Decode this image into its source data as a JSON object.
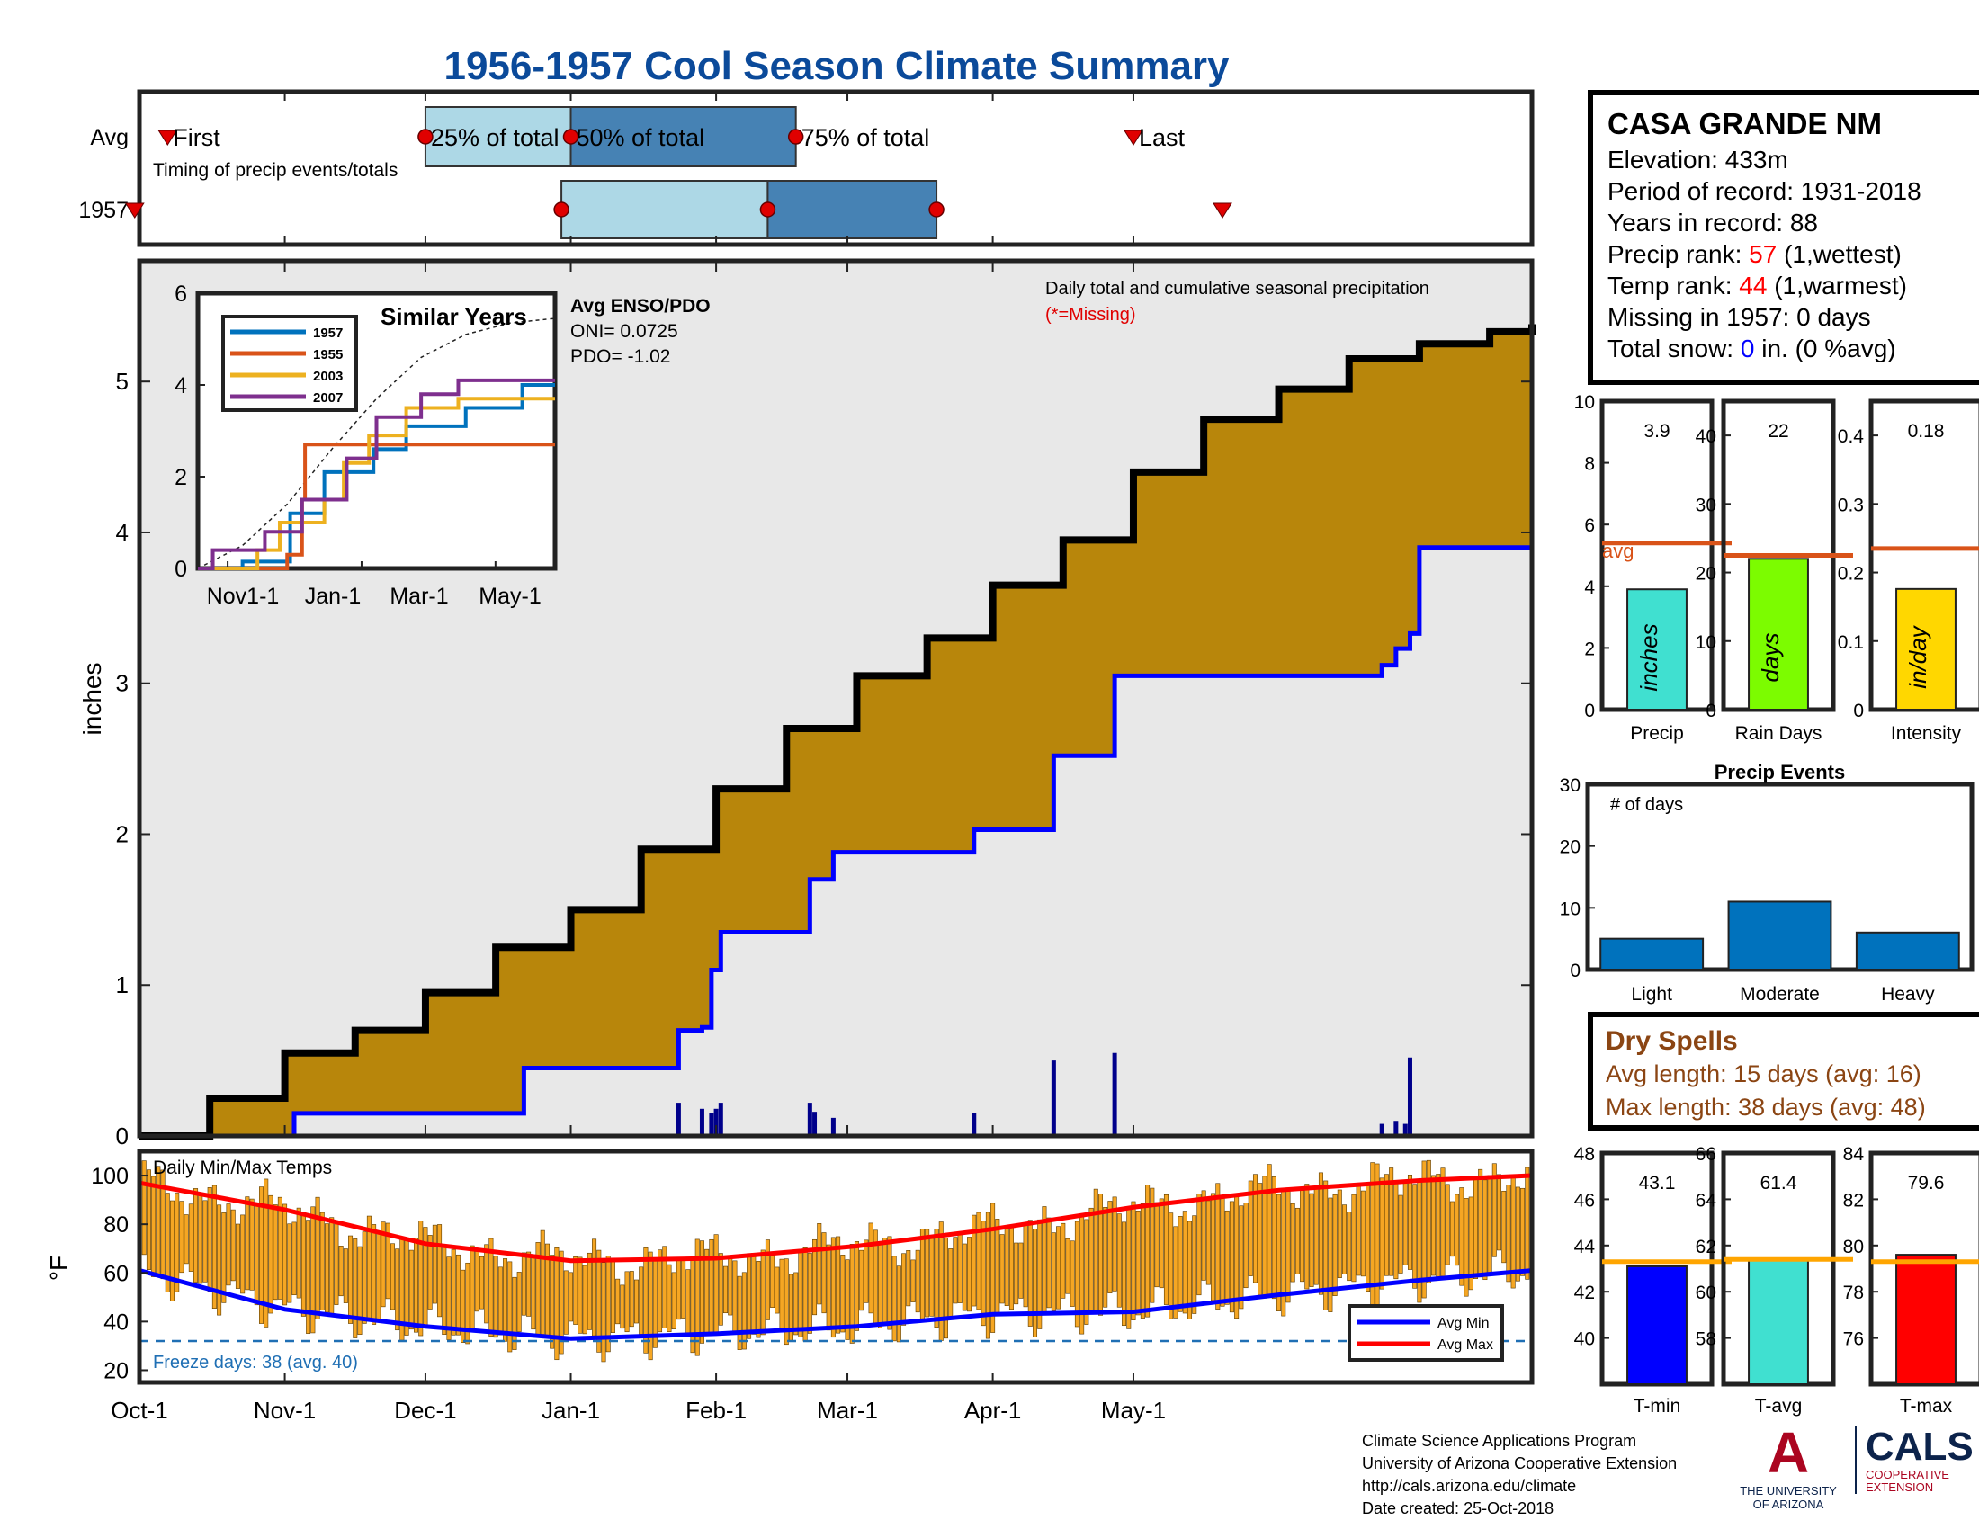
{
  "title": "1956-1957 Cool Season Climate Summary",
  "station": {
    "name": "CASA GRANDE NM",
    "elevation": "Elevation: 433m",
    "period": "Period of record: 1931-2018",
    "years": "Years in record: 88",
    "precip_rank_label": "Precip rank: ",
    "precip_rank": "57",
    "precip_rank_note": " (1,wettest)",
    "temp_rank_label": "Temp rank: ",
    "temp_rank": "44",
    "temp_rank_note": " (1,warmest)",
    "missing": "Missing in 1957: 0 days",
    "snow_label": "Total snow: ",
    "snow_value": "0",
    "snow_note": " in. (0 %avg)"
  },
  "dry_spells": {
    "title": "Dry Spells",
    "avg": "Avg length: 15 days (avg: 16)",
    "max": "Max length: 38 days (avg: 48)"
  },
  "credits": {
    "line1": "Climate Science Applications Program",
    "line2": "University of Arizona Cooperative Extension",
    "line3": "http://cals.arizona.edu/climate",
    "line4": " Date created: 25-Oct-2018"
  },
  "logos": {
    "ua_mark": "A",
    "ua_text": "THE UNIVERSITY OF ARIZONA",
    "cals": "CALS",
    "cals_sub": "COOPERATIVE EXTENSION"
  },
  "colors": {
    "title": "#0B4A9A",
    "brown": "#B8860B",
    "blue": "#0000FF",
    "red": "#FF0000",
    "avg_line": "#D95319",
    "light_box": "#ADD8E6",
    "dark_box": "#4682B4"
  },
  "chart_data": [
    {
      "id": "timing",
      "type": "timeline",
      "row_labels": [
        "Avg",
        "1957"
      ],
      "note": "Timing of precip events/totals",
      "avg_markers": {
        "first": "Oct-7",
        "p25": "Dec-1",
        "p50": "Jan-1",
        "p75": "Feb-18",
        "last": "May-1"
      },
      "marker_labels": [
        "First",
        "25% of total",
        "50% of total",
        "75% of total",
        "Last"
      ],
      "year_markers": {
        "first": "Sep-30",
        "p25": "Dec-30",
        "p50": "Feb-12",
        "p75": "Mar-20",
        "last": "May-20"
      }
    },
    {
      "id": "precip",
      "type": "area",
      "ylabel": "inches",
      "ylim": [
        0,
        5.8
      ],
      "yticks": [
        0,
        1,
        2,
        3,
        4,
        5
      ],
      "xticks": [
        "Oct-1",
        "Nov-1",
        "Dec-1",
        "Jan-1",
        "Feb-1",
        "Mar-1",
        "Apr-1",
        "May-1"
      ],
      "annotation": "Daily total and cumulative seasonal precipitation",
      "annotation_missing": "(*=Missing)",
      "avg_cumulative": [
        [
          0,
          0
        ],
        [
          15,
          0.25
        ],
        [
          31,
          0.55
        ],
        [
          46,
          0.7
        ],
        [
          61,
          0.95
        ],
        [
          76,
          1.25
        ],
        [
          92,
          1.5
        ],
        [
          107,
          1.9
        ],
        [
          123,
          2.3
        ],
        [
          138,
          2.7
        ],
        [
          153,
          3.05
        ],
        [
          168,
          3.3
        ],
        [
          182,
          3.65
        ],
        [
          197,
          3.95
        ],
        [
          212,
          4.4
        ],
        [
          227,
          4.75
        ],
        [
          243,
          4.95
        ],
        [
          258,
          5.15
        ],
        [
          273,
          5.25
        ],
        [
          288,
          5.33
        ],
        [
          297,
          5.38
        ]
      ],
      "year_cumulative": [
        [
          0,
          0
        ],
        [
          33,
          0
        ],
        [
          33,
          0.15
        ],
        [
          82,
          0.15
        ],
        [
          82,
          0.45
        ],
        [
          115,
          0.45
        ],
        [
          115,
          0.7
        ],
        [
          120,
          0.72
        ],
        [
          122,
          1.1
        ],
        [
          124,
          1.35
        ],
        [
          143,
          1.35
        ],
        [
          143,
          1.7
        ],
        [
          148,
          1.7
        ],
        [
          148,
          1.88
        ],
        [
          178,
          1.88
        ],
        [
          178,
          2.03
        ],
        [
          195,
          2.03
        ],
        [
          195,
          2.52
        ],
        [
          208,
          2.52
        ],
        [
          208,
          3.05
        ],
        [
          248,
          3.05
        ],
        [
          265,
          3.08
        ],
        [
          265,
          3.12
        ],
        [
          268,
          3.12
        ],
        [
          268,
          3.23
        ],
        [
          271,
          3.23
        ],
        [
          271,
          3.33
        ],
        [
          273,
          3.33
        ],
        [
          273,
          3.9
        ],
        [
          297,
          3.91
        ]
      ],
      "daily_bars": [
        [
          115,
          0.22
        ],
        [
          120,
          0.18
        ],
        [
          122,
          0.15
        ],
        [
          123,
          0.18
        ],
        [
          124,
          0.22
        ],
        [
          143,
          0.22
        ],
        [
          144,
          0.16
        ],
        [
          148,
          0.12
        ],
        [
          178,
          0.15
        ],
        [
          195,
          0.5
        ],
        [
          208,
          0.55
        ],
        [
          265,
          0.08
        ],
        [
          268,
          0.1
        ],
        [
          270,
          0.08
        ],
        [
          271,
          0.52
        ]
      ]
    },
    {
      "id": "similar_years",
      "type": "line",
      "title": "Similar Years",
      "ylim": [
        0,
        6
      ],
      "yticks": [
        0,
        2,
        4,
        6
      ],
      "xticks": [
        "Nov1-1",
        "Jan-1",
        "Mar-1",
        "May-1"
      ],
      "series": [
        {
          "name": "1957",
          "color": "#0072BD",
          "values": [
            [
              0,
              0
            ],
            [
              30,
              0
            ],
            [
              30,
              0.15
            ],
            [
              62,
              0.15
            ],
            [
              62,
              1.2
            ],
            [
              85,
              1.2
            ],
            [
              85,
              2.1
            ],
            [
              118,
              2.1
            ],
            [
              118,
              2.6
            ],
            [
              140,
              2.6
            ],
            [
              140,
              3.1
            ],
            [
              180,
              3.1
            ],
            [
              180,
              3.5
            ],
            [
              218,
              3.5
            ],
            [
              218,
              4.0
            ],
            [
              240,
              4.0
            ]
          ]
        },
        {
          "name": "1955",
          "color": "#D95319",
          "values": [
            [
              0,
              0
            ],
            [
              60,
              0
            ],
            [
              60,
              0.3
            ],
            [
              70,
              0.3
            ],
            [
              70,
              1.5
            ],
            [
              72,
              1.5
            ],
            [
              72,
              2.7
            ],
            [
              240,
              2.7
            ]
          ]
        },
        {
          "name": "2003",
          "color": "#EDB120",
          "values": [
            [
              0,
              0
            ],
            [
              40,
              0
            ],
            [
              40,
              0.4
            ],
            [
              55,
              0.4
            ],
            [
              55,
              1.0
            ],
            [
              85,
              1.0
            ],
            [
              85,
              1.5
            ],
            [
              98,
              1.5
            ],
            [
              98,
              2.3
            ],
            [
              115,
              2.3
            ],
            [
              115,
              2.9
            ],
            [
              140,
              2.9
            ],
            [
              140,
              3.5
            ],
            [
              175,
              3.5
            ],
            [
              175,
              3.7
            ],
            [
              240,
              3.7
            ]
          ]
        },
        {
          "name": "2007",
          "color": "#7E2F8E",
          "values": [
            [
              0,
              0
            ],
            [
              10,
              0
            ],
            [
              10,
              0.4
            ],
            [
              45,
              0.4
            ],
            [
              45,
              0.8
            ],
            [
              70,
              0.8
            ],
            [
              70,
              1.5
            ],
            [
              100,
              1.5
            ],
            [
              100,
              2.4
            ],
            [
              120,
              2.4
            ],
            [
              120,
              3.3
            ],
            [
              150,
              3.3
            ],
            [
              150,
              3.8
            ],
            [
              175,
              3.8
            ],
            [
              175,
              4.1
            ],
            [
              240,
              4.1
            ]
          ]
        }
      ],
      "avg_line": [
        [
          0,
          0
        ],
        [
          30,
          0.5
        ],
        [
          60,
          1.4
        ],
        [
          90,
          2.6
        ],
        [
          120,
          3.7
        ],
        [
          150,
          4.6
        ],
        [
          180,
          5.1
        ],
        [
          210,
          5.35
        ],
        [
          240,
          5.45
        ]
      ],
      "enso_title": "Avg ENSO/PDO",
      "oni": "ONI= 0.0725",
      "pdo": "PDO= -1.02"
    },
    {
      "id": "temps",
      "type": "bar",
      "title": "Daily Min/Max Temps",
      "ylabel": "°F",
      "ylim": [
        15,
        110
      ],
      "yticks": [
        20,
        40,
        60,
        80,
        100
      ],
      "freeze_line": 32,
      "freeze_text": "Freeze days: 38 (avg. 40)",
      "legend": [
        "Avg Min",
        "Avg Max"
      ],
      "avg_max": [
        [
          0,
          97
        ],
        [
          31,
          86
        ],
        [
          61,
          72
        ],
        [
          92,
          65
        ],
        [
          123,
          66
        ],
        [
          153,
          71
        ],
        [
          182,
          78
        ],
        [
          212,
          87
        ],
        [
          243,
          94
        ],
        [
          273,
          98
        ],
        [
          297,
          100
        ]
      ],
      "avg_min": [
        [
          0,
          61
        ],
        [
          31,
          45
        ],
        [
          61,
          38
        ],
        [
          92,
          33
        ],
        [
          123,
          35
        ],
        [
          153,
          38
        ],
        [
          182,
          43
        ],
        [
          212,
          44
        ],
        [
          243,
          51
        ],
        [
          273,
          57
        ],
        [
          297,
          61
        ]
      ]
    },
    {
      "id": "precip_summary",
      "type": "bar",
      "xlabel": "Precip",
      "ylim": [
        0,
        10
      ],
      "yticks": [
        0,
        2,
        4,
        6,
        8,
        10
      ],
      "value": 3.9,
      "value_label": "3.9",
      "avg": 5.4,
      "avg_label": "avg",
      "bar_label": "inches",
      "color": "#40E0D0"
    },
    {
      "id": "rain_days",
      "type": "bar",
      "xlabel": "Rain Days",
      "ylim": [
        0,
        45
      ],
      "yticks": [
        0,
        10,
        20,
        30,
        40
      ],
      "value": 22,
      "value_label": "22",
      "avg": 22.5,
      "bar_label": "days",
      "color": "#7CFC00"
    },
    {
      "id": "intensity",
      "type": "bar",
      "xlabel": "Intensity",
      "ylim": [
        0,
        0.45
      ],
      "yticks": [
        0,
        0.1,
        0.2,
        0.3,
        0.4
      ],
      "value": 0.176,
      "value_label": "0.18",
      "avg": 0.235,
      "bar_label": "in/day",
      "color": "#FFD700"
    },
    {
      "id": "precip_events",
      "type": "bar",
      "title": "Precip Events",
      "note": "# of days",
      "categories": [
        "Light",
        "Moderate",
        "Heavy"
      ],
      "values": [
        5,
        11,
        6
      ],
      "ylim": [
        0,
        30
      ],
      "yticks": [
        0,
        10,
        20,
        30
      ],
      "color": "#0072BD"
    },
    {
      "id": "t_min",
      "type": "bar",
      "xlabel": "T-min",
      "ylim": [
        38,
        48
      ],
      "yticks": [
        40,
        42,
        44,
        46,
        48
      ],
      "value": 43.1,
      "value_label": "43.1",
      "avg": 43.3,
      "color": "#0000FF"
    },
    {
      "id": "t_avg",
      "type": "bar",
      "xlabel": "T-avg",
      "ylim": [
        56,
        66
      ],
      "yticks": [
        58,
        60,
        62,
        64,
        66
      ],
      "value": 61.4,
      "value_label": "61.4",
      "avg": 61.4,
      "color": "#40E0D0"
    },
    {
      "id": "t_max",
      "type": "bar",
      "xlabel": "T-max",
      "ylim": [
        74,
        84
      ],
      "yticks": [
        76,
        78,
        80,
        82,
        84
      ],
      "value": 79.6,
      "value_label": "79.6",
      "avg": 79.3,
      "color": "#FF0000"
    }
  ]
}
